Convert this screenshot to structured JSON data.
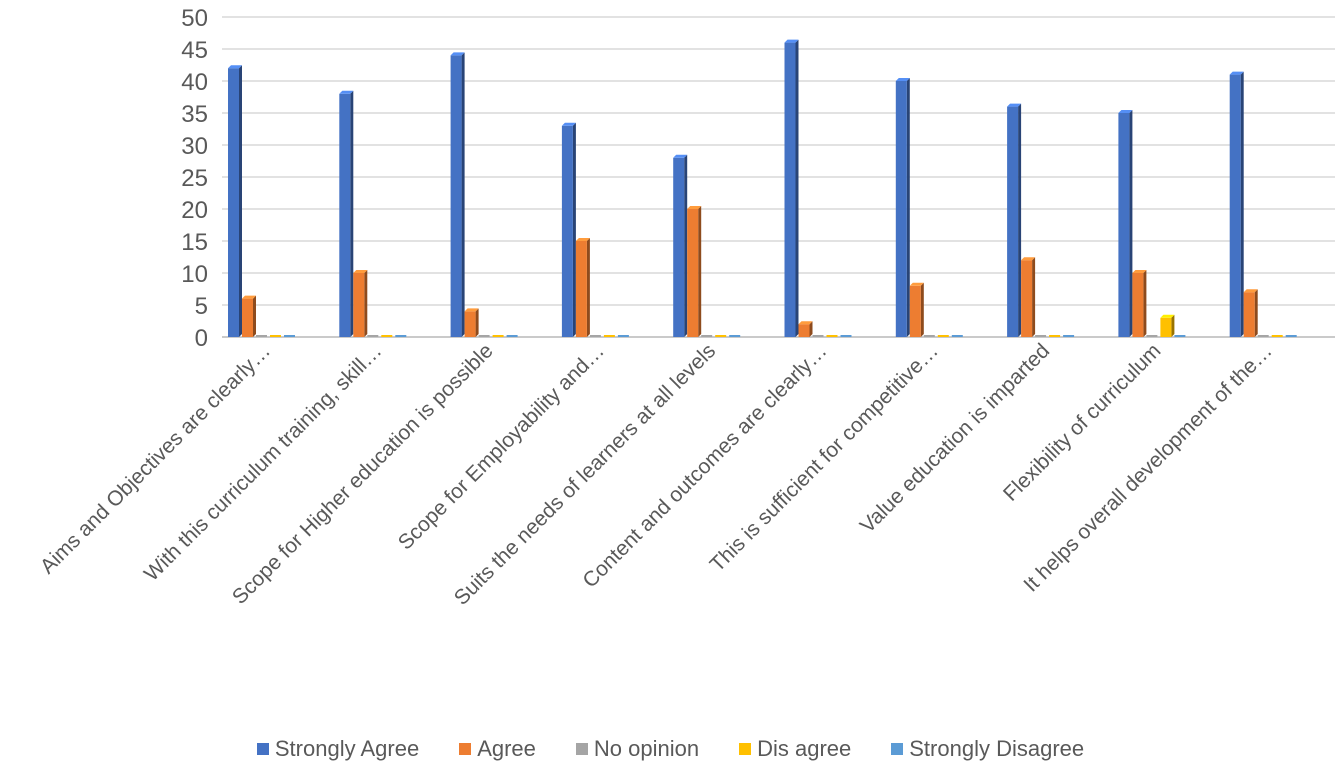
{
  "chart_data": {
    "type": "bar",
    "categories": [
      "Aims and Objectives are clearly…",
      "With this curriculum training, skill…",
      "Scope for Higher education is possible",
      "Scope for Employability and…",
      "Suits the needs of learners at all levels",
      "Content and outcomes are clearly…",
      "This is sufficient for competitive…",
      "Value education is imparted",
      "Flexibility of curriculum",
      "It helps overall development of the…"
    ],
    "series": [
      {
        "name": "Strongly Agree",
        "color": "#4472C4",
        "values": [
          42,
          38,
          44,
          33,
          28,
          46,
          40,
          36,
          35,
          41
        ]
      },
      {
        "name": "Agree",
        "color": "#ED7D31",
        "values": [
          6,
          10,
          4,
          15,
          20,
          2,
          8,
          12,
          10,
          7
        ]
      },
      {
        "name": "No opinion",
        "color": "#A5A5A5",
        "values": [
          0,
          0,
          0,
          0,
          0,
          0,
          0,
          0,
          0,
          0
        ]
      },
      {
        "name": "Dis agree",
        "color": "#FFC000",
        "values": [
          0,
          0,
          0,
          0,
          0,
          0,
          0,
          0,
          3,
          0
        ]
      },
      {
        "name": "Strongly Disagree",
        "color": "#5B9BD5",
        "values": [
          0,
          0,
          0,
          0,
          0,
          0,
          0,
          0,
          0,
          0
        ]
      }
    ],
    "ylim": [
      0,
      50
    ],
    "yticks": [
      0,
      5,
      10,
      15,
      20,
      25,
      30,
      35,
      40,
      45,
      50
    ],
    "grid": true,
    "legend_position": "bottom",
    "title": "",
    "xlabel": "",
    "ylabel": ""
  }
}
